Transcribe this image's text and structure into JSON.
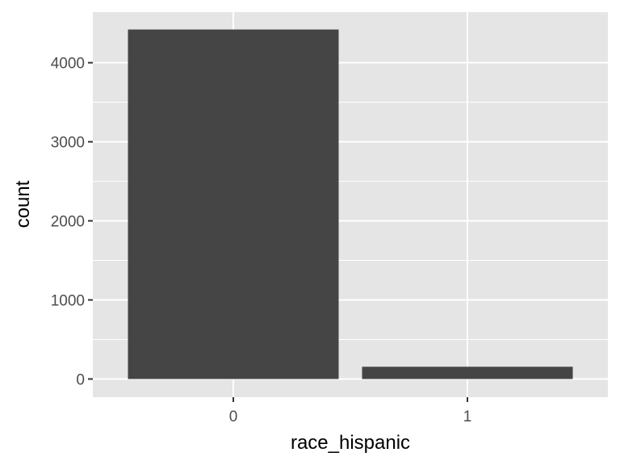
{
  "chart_data": {
    "type": "bar",
    "title": "",
    "xlabel": "race_hispanic",
    "ylabel": "count",
    "categories": [
      "0",
      "1"
    ],
    "values": [
      4420,
      155
    ],
    "ylim": [
      -230,
      4640
    ],
    "yticks": [
      0,
      1000,
      2000,
      3000,
      4000
    ],
    "ytick_labels": [
      "0",
      "1000",
      "2000",
      "3000",
      "4000"
    ],
    "grid": true,
    "legend": "none",
    "colors": {
      "bar": "#454545",
      "panel": "#e5e5e5",
      "grid": "#ffffff",
      "text": "#4d4d4d"
    }
  }
}
